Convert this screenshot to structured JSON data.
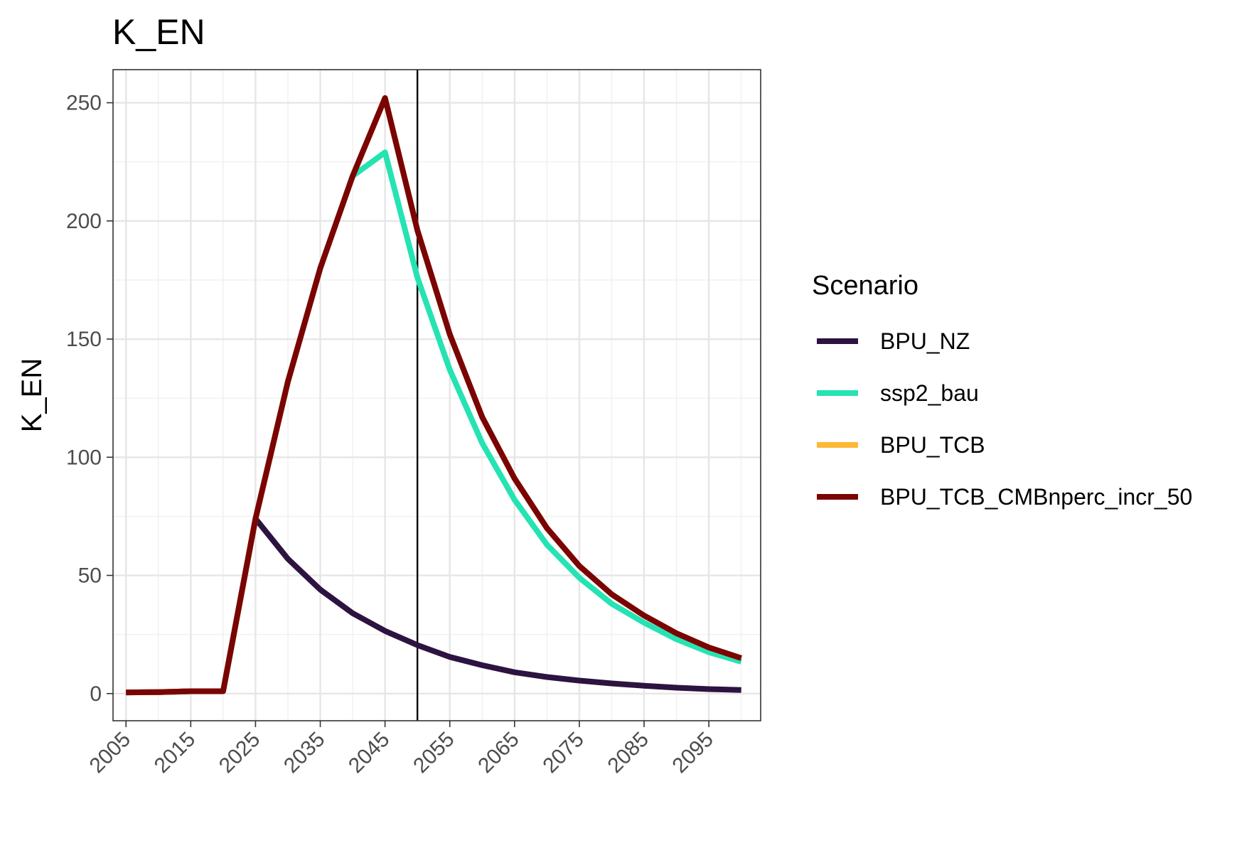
{
  "chart_data": {
    "type": "line",
    "title": "K_EN",
    "xlabel": "",
    "ylabel": "K_EN",
    "xlim": [
      2003,
      2103
    ],
    "ylim": [
      -11.5,
      264
    ],
    "x_ticks": [
      2005,
      2015,
      2025,
      2035,
      2045,
      2055,
      2065,
      2075,
      2085,
      2095
    ],
    "x_tick_labels": [
      "2005",
      "2015",
      "2025",
      "2035",
      "2045",
      "2055",
      "2065",
      "2075",
      "2085",
      "2095"
    ],
    "y_ticks": [
      0,
      50,
      100,
      150,
      200,
      250
    ],
    "y_tick_labels": [
      "0",
      "50",
      "100",
      "150",
      "200",
      "250"
    ],
    "grid": true,
    "vline_x": 2050,
    "legend": {
      "title": "Scenario",
      "position": "right"
    },
    "x": [
      2005,
      2010,
      2015,
      2020,
      2025,
      2030,
      2035,
      2040,
      2045,
      2050,
      2055,
      2060,
      2065,
      2070,
      2075,
      2080,
      2085,
      2090,
      2095,
      2100
    ],
    "series": [
      {
        "name": "BPU_NZ",
        "color": "#2d1340",
        "values": [
          0.5,
          0.6,
          1,
          1,
          74,
          57,
          44,
          34,
          26.5,
          20.5,
          15.5,
          12,
          9,
          7,
          5.5,
          4.3,
          3.3,
          2.5,
          1.9,
          1.5
        ]
      },
      {
        "name": "ssp2_bau",
        "color": "#25e3b2",
        "values": [
          0.5,
          0.6,
          1,
          1,
          74,
          132,
          180,
          219,
          229,
          176,
          137,
          106,
          82,
          63,
          49,
          38,
          30,
          23,
          17.5,
          13.5
        ]
      },
      {
        "name": "BPU_TCB",
        "color": "#fbb935",
        "values": [
          0.5,
          0.6,
          1,
          1,
          74,
          132,
          180,
          219,
          252,
          196,
          152,
          117,
          91,
          70,
          54,
          42,
          33,
          25.5,
          19.5,
          15
        ]
      },
      {
        "name": "BPU_TCB_CMBnperc_incr_50",
        "color": "#7a0403",
        "values": [
          0.5,
          0.6,
          1,
          1,
          74,
          132,
          180,
          219,
          252,
          196,
          152,
          117,
          91,
          70,
          54,
          42,
          33,
          25.5,
          19.5,
          15
        ]
      }
    ]
  }
}
